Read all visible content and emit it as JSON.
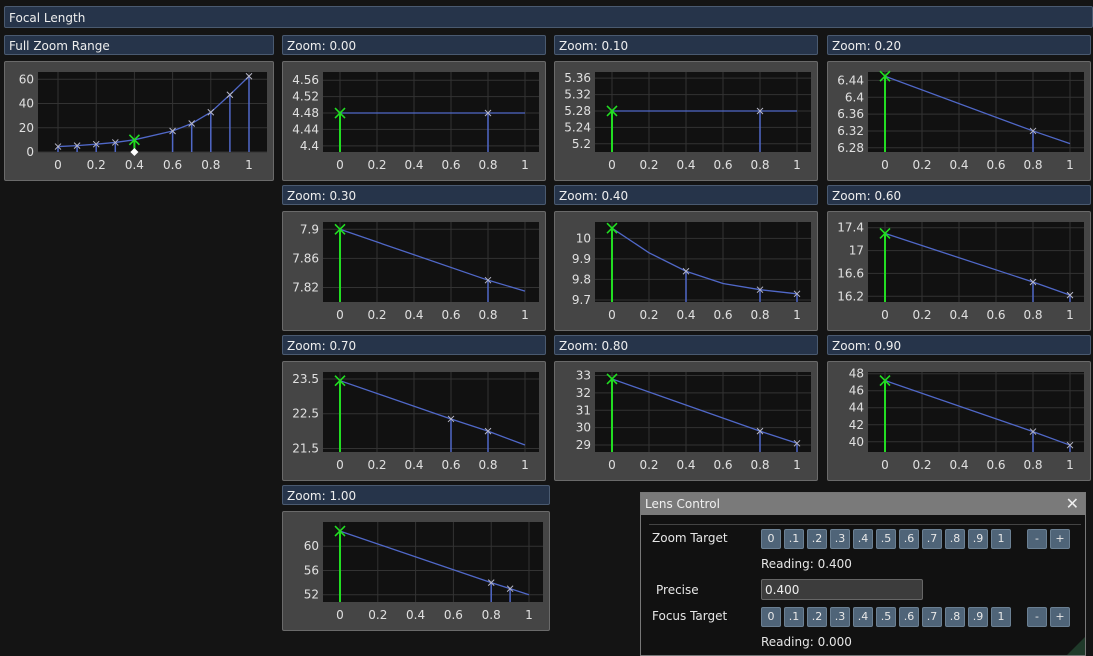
{
  "title": "Focal Length",
  "colors": {
    "line": "#5068c8",
    "highlight": "#22dd22",
    "marker": "#b8b8c8",
    "plot_bg": "#111111",
    "grid": "#333333"
  },
  "chart_data": [
    {
      "type": "line",
      "title": "Full Zoom Range",
      "x": [
        0,
        0.1,
        0.2,
        0.3,
        0.4,
        0.6,
        0.7,
        0.8,
        0.9,
        1
      ],
      "y": [
        4.48,
        5.28,
        6.44,
        7.9,
        10.05,
        17.3,
        23.5,
        32.8,
        47.2,
        62.5
      ],
      "highlight_x": 0.4,
      "yticks": [
        0,
        20,
        40,
        60
      ],
      "ylim": [
        0,
        66
      ],
      "xticks": [
        0,
        0.2,
        0.4,
        0.6,
        0.8,
        1
      ],
      "current_marker_x": 0.4
    },
    {
      "type": "line",
      "title": "Zoom: 0.00",
      "x": [
        0,
        0.8,
        1
      ],
      "y": [
        4.48,
        4.48,
        4.48
      ],
      "markers": [
        0,
        0.8
      ],
      "highlight_x": 0,
      "yticks": [
        4.4,
        4.44,
        4.48,
        4.52,
        4.56
      ],
      "ylim": [
        4.385,
        4.58
      ],
      "xticks": [
        0,
        0.2,
        0.4,
        0.6,
        0.8,
        1
      ]
    },
    {
      "type": "line",
      "title": "Zoom: 0.10",
      "x": [
        0,
        0.8,
        1
      ],
      "y": [
        5.28,
        5.28,
        5.28
      ],
      "markers": [
        0,
        0.8
      ],
      "highlight_x": 0,
      "yticks": [
        5.2,
        5.24,
        5.28,
        5.32,
        5.36
      ],
      "ylim": [
        5.18,
        5.375
      ],
      "xticks": [
        0,
        0.2,
        0.4,
        0.6,
        0.8,
        1
      ]
    },
    {
      "type": "line",
      "title": "Zoom: 0.20",
      "x": [
        0,
        0.8,
        1
      ],
      "y": [
        6.45,
        6.32,
        6.29
      ],
      "markers": [
        0,
        0.8
      ],
      "highlight_x": 0,
      "yticks": [
        6.28,
        6.32,
        6.36,
        6.4,
        6.44
      ],
      "ylim": [
        6.27,
        6.46
      ],
      "xticks": [
        0,
        0.2,
        0.4,
        0.6,
        0.8,
        1
      ]
    },
    {
      "type": "line",
      "title": "Zoom: 0.30",
      "x": [
        0,
        0.8,
        1
      ],
      "y": [
        7.9,
        7.83,
        7.815
      ],
      "markers": [
        0,
        0.8
      ],
      "highlight_x": 0,
      "yticks": [
        7.82,
        7.86,
        7.9
      ],
      "ylim": [
        7.8,
        7.91
      ],
      "xticks": [
        0,
        0.2,
        0.4,
        0.6,
        0.8,
        1
      ]
    },
    {
      "type": "line",
      "title": "Zoom: 0.40",
      "x": [
        0,
        0.2,
        0.4,
        0.6,
        0.8,
        1
      ],
      "y": [
        10.05,
        9.93,
        9.84,
        9.78,
        9.75,
        9.73
      ],
      "markers": [
        0,
        0.4,
        0.8,
        1
      ],
      "highlight_x": 0,
      "yticks": [
        9.7,
        9.8,
        9.9,
        10
      ],
      "ylim": [
        9.69,
        10.08
      ],
      "xticks": [
        0,
        0.2,
        0.4,
        0.6,
        0.8,
        1
      ]
    },
    {
      "type": "line",
      "title": "Zoom: 0.60",
      "x": [
        0,
        0.8,
        1
      ],
      "y": [
        17.3,
        16.45,
        16.22
      ],
      "markers": [
        0,
        0.8,
        1
      ],
      "highlight_x": 0,
      "yticks": [
        16.2,
        16.6,
        17,
        17.4
      ],
      "ylim": [
        16.1,
        17.5
      ],
      "xticks": [
        0,
        0.2,
        0.4,
        0.6,
        0.8,
        1
      ]
    },
    {
      "type": "line",
      "title": "Zoom: 0.70",
      "x": [
        0,
        0.6,
        0.8,
        1
      ],
      "y": [
        23.45,
        22.35,
        22.0,
        21.6
      ],
      "markers": [
        0,
        0.6,
        0.8
      ],
      "highlight_x": 0,
      "yticks": [
        21.5,
        22.5,
        23.5
      ],
      "ylim": [
        21.4,
        23.7
      ],
      "xticks": [
        0,
        0.2,
        0.4,
        0.6,
        0.8,
        1
      ]
    },
    {
      "type": "line",
      "title": "Zoom: 0.80",
      "x": [
        0,
        0.8,
        1
      ],
      "y": [
        32.8,
        29.8,
        29.1
      ],
      "markers": [
        0,
        0.8,
        1
      ],
      "highlight_x": 0,
      "yticks": [
        29,
        30,
        31,
        32,
        33
      ],
      "ylim": [
        28.6,
        33.2
      ],
      "xticks": [
        0,
        0.2,
        0.4,
        0.6,
        0.8,
        1
      ]
    },
    {
      "type": "line",
      "title": "Zoom: 0.90",
      "x": [
        0,
        0.8,
        1
      ],
      "y": [
        47.2,
        41.2,
        39.6
      ],
      "markers": [
        0,
        0.8,
        1
      ],
      "highlight_x": 0,
      "yticks": [
        40,
        42,
        44,
        46,
        48
      ],
      "ylim": [
        38.8,
        48.2
      ],
      "xticks": [
        0,
        0.2,
        0.4,
        0.6,
        0.8,
        1
      ]
    },
    {
      "type": "line",
      "title": "Zoom: 1.00",
      "x": [
        0,
        0.8,
        0.9,
        1
      ],
      "y": [
        62.5,
        54,
        53,
        52
      ],
      "markers": [
        0,
        0.8,
        0.9
      ],
      "highlight_x": 0,
      "yticks": [
        52,
        56,
        60
      ],
      "ylim": [
        50.8,
        64
      ],
      "xticks": [
        0,
        0.2,
        0.4,
        0.6,
        0.8,
        1
      ]
    }
  ],
  "lens_control": {
    "title": "Lens Control",
    "zoom_label": "Zoom Target",
    "focus_label": "Focus Target",
    "presets": [
      "0",
      ".1",
      ".2",
      ".3",
      ".4",
      ".5",
      ".6",
      ".7",
      ".8",
      ".9",
      "1"
    ],
    "minus": "-",
    "plus": "+",
    "zoom_reading": "Reading: 0.400",
    "precise_label": "Precise",
    "precise_value": "0.400",
    "focus_reading": "Reading: 0.000"
  }
}
